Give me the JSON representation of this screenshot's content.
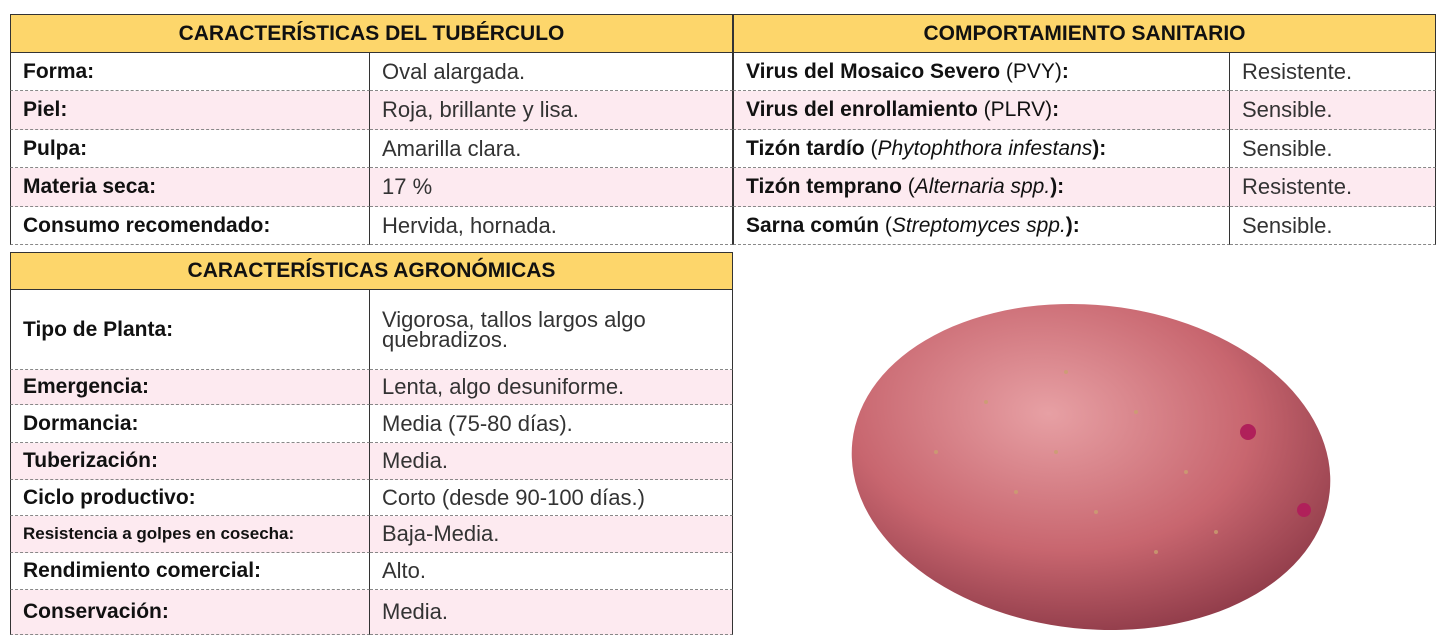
{
  "tuber": {
    "title": "CARACTERÍSTICAS DEL TUBÉRCULO",
    "rows": [
      [
        "Forma:",
        "Oval alargada."
      ],
      [
        "Piel:",
        "Roja, brillante y lisa."
      ],
      [
        "Pulpa:",
        "Amarilla clara."
      ],
      [
        "Materia seca:",
        "17 %"
      ],
      [
        "Consumo recomendado:",
        "Hervida, hornada."
      ]
    ]
  },
  "sanitary": {
    "title": "COMPORTAMIENTO SANITARIO",
    "rows": [
      {
        "label": [
          {
            "text": "Virus del Mosaico Severo",
            "style": "bold"
          },
          {
            "text": " (PVY)",
            "style": "normal"
          },
          {
            "text": ":",
            "style": "bold"
          }
        ],
        "value": "Resistente."
      },
      {
        "label": [
          {
            "text": "Virus del enrollamiento",
            "style": "bold"
          },
          {
            "text": " (PLRV)",
            "style": "normal"
          },
          {
            "text": ":",
            "style": "bold"
          }
        ],
        "value": "Sensible."
      },
      {
        "label": [
          {
            "text": "Tizón tardío",
            "style": "bold"
          },
          {
            "text": " (",
            "style": "normal"
          },
          {
            "text": "Phytophthora infestans",
            "style": "italic"
          },
          {
            "text": "):",
            "style": "bold"
          }
        ],
        "value": "Sensible."
      },
      {
        "label": [
          {
            "text": "Tizón temprano",
            "style": "bold"
          },
          {
            "text": " (",
            "style": "normal"
          },
          {
            "text": "Alternaria spp.",
            "style": "italic"
          },
          {
            "text": "):",
            "style": "bold"
          }
        ],
        "value": "Resistente."
      },
      {
        "label": [
          {
            "text": "Sarna común",
            "style": "bold"
          },
          {
            "text": " (",
            "style": "normal"
          },
          {
            "text": "Streptomyces spp.",
            "style": "italic"
          },
          {
            "text": "):",
            "style": "bold"
          }
        ],
        "value": "Sensible."
      }
    ]
  },
  "agronomic": {
    "title": "CARACTERÍSTICAS AGRONÓMICAS",
    "rows": [
      [
        "Tipo de Planta:",
        "Vigorosa, tallos largos algo quebradizos."
      ],
      [
        "Emergencia:",
        "Lenta, algo desuniforme."
      ],
      [
        "Dormancia:",
        "Media (75-80 días)."
      ],
      [
        "Tuberización:",
        "Media."
      ],
      [
        "Ciclo productivo:",
        "Corto (desde 90-100 días.)"
      ],
      [
        "Resistencia a golpes en cosecha:",
        "Baja-Media."
      ],
      [
        "Rendimiento comercial:",
        "Alto."
      ],
      [
        "Conservación:",
        "Media."
      ]
    ]
  }
}
